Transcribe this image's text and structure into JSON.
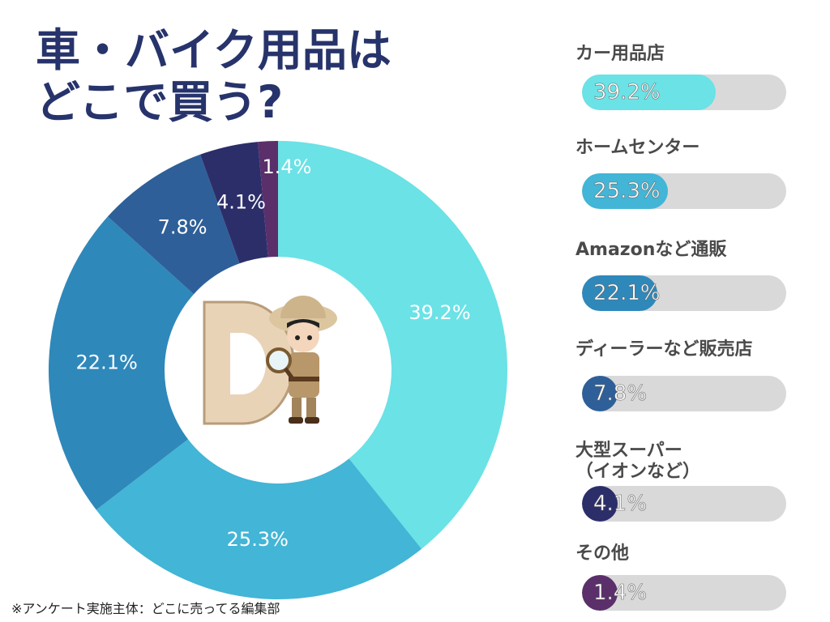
{
  "title_lines": [
    "車・バイク用品は",
    "どこで買う?"
  ],
  "footnote": "※アンケート実施主体：どこに売ってる編集部",
  "chart_data": {
    "type": "pie",
    "title": "車・バイク用品はどこで買う?",
    "categories": [
      "カー用品店",
      "ホームセンター",
      "Amazonなど通販",
      "ディーラーなど販売店",
      "大型スーパー\n（イオンなど）",
      "その他"
    ],
    "values": [
      39.2,
      25.3,
      22.1,
      7.8,
      4.1,
      1.4
    ],
    "value_labels": [
      "39.2%",
      "25.3%",
      "22.1%",
      "7.8%",
      "4.1%",
      "1.4%"
    ],
    "colors": [
      "#6ae2e6",
      "#43b5d6",
      "#2f88ba",
      "#2e5f98",
      "#2c2e6a",
      "#5a2f6a"
    ],
    "unit": "%",
    "legend_placement": "right"
  },
  "center_icon": "detective-mascot-icon"
}
